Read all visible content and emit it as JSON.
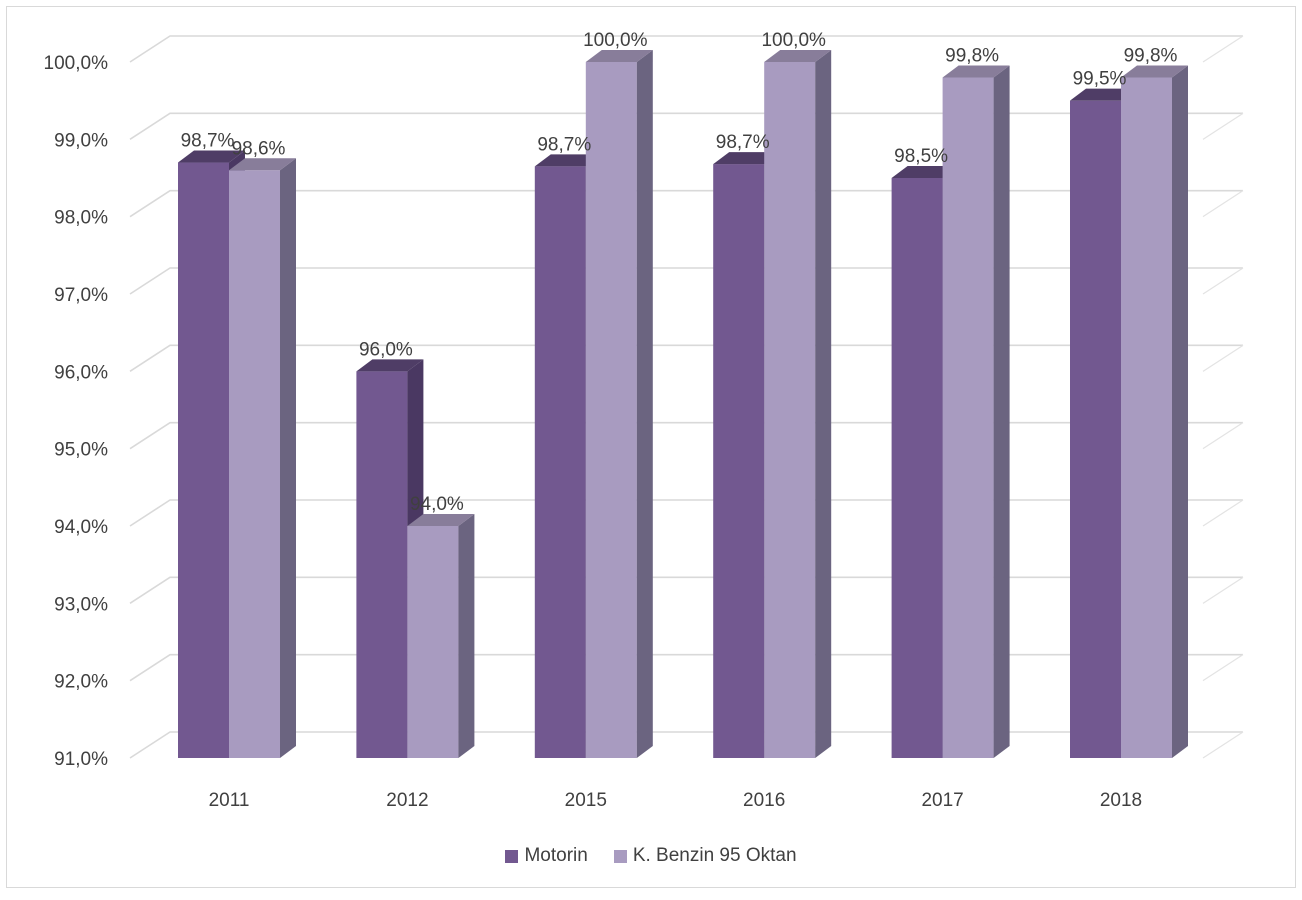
{
  "chart_data": {
    "type": "bar",
    "categories": [
      "2011",
      "2012",
      "2015",
      "2016",
      "2017",
      "2018"
    ],
    "series": [
      {
        "name": "Motorin",
        "values": [
          98.7,
          96.0,
          98.65,
          98.68,
          98.5,
          99.5
        ],
        "labels": [
          "98,7%",
          "96,0%",
          "98,7%",
          "98,7%",
          "98,5%",
          "99,5%"
        ],
        "color": "#725890"
      },
      {
        "name": "K. Benzin 95 Oktan",
        "values": [
          98.6,
          94.0,
          100.0,
          100.0,
          99.8,
          99.8
        ],
        "labels": [
          "98,6%",
          "94,0%",
          "100,0%",
          "100,0%",
          "99,8%",
          "99,8%"
        ],
        "color": "#a89bc0"
      }
    ],
    "y_ticks": [
      "91,0%",
      "92,0%",
      "93,0%",
      "94,0%",
      "95,0%",
      "96,0%",
      "97,0%",
      "98,0%",
      "99,0%",
      "100,0%"
    ],
    "ylim": [
      91,
      100
    ],
    "grid": true,
    "legend_position": "bottom",
    "style": "3d-clustered-column"
  }
}
